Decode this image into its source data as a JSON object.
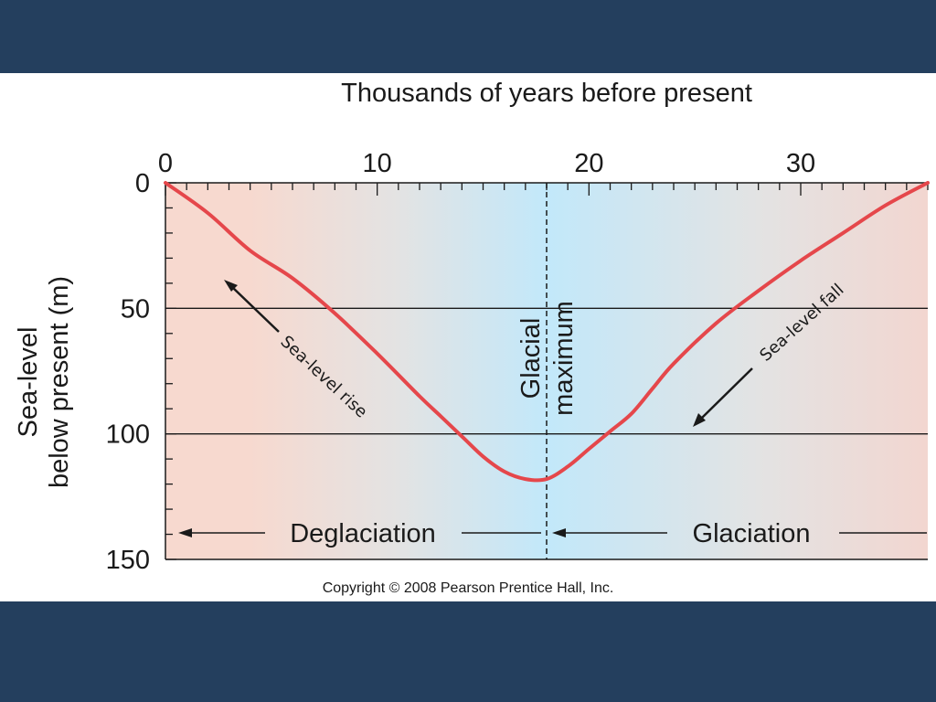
{
  "slide": {
    "background_color": "#243f5e",
    "panel_color": "#ffffff"
  },
  "chart_data": {
    "type": "line",
    "title": "",
    "xlabel": "Thousands of years before present",
    "ylabel_lines": [
      "Sea-level",
      "below present (m)"
    ],
    "xlim": [
      0,
      36
    ],
    "ylim": [
      0,
      150
    ],
    "y_inverted": true,
    "x_axis_position": "top",
    "x_ticks": [
      0,
      10,
      20,
      30
    ],
    "y_ticks": [
      0,
      50,
      100,
      150
    ],
    "gridlines_y": [
      50,
      100
    ],
    "series": [
      {
        "color": "#e5474b",
        "x": [
          0,
          2,
          4,
          6,
          8,
          10,
          12,
          13,
          14,
          15,
          16,
          17,
          18,
          19,
          20,
          21,
          22,
          23,
          24,
          26,
          28,
          30,
          32,
          34,
          36
        ],
        "y": [
          0,
          12,
          27,
          38,
          52,
          68,
          85,
          93,
          101,
          109,
          115,
          118,
          118,
          113,
          106,
          99,
          92,
          82,
          72,
          56,
          43,
          31,
          20,
          9,
          0
        ]
      }
    ],
    "background_bands": [
      {
        "from": 0,
        "to": 8,
        "color": "#f7d9cf"
      },
      {
        "from": 8,
        "to": 14,
        "color": "#e3e3e3"
      },
      {
        "from": 18,
        "to": 18,
        "color": "#c2e8fa"
      },
      {
        "from": 26,
        "to": 30,
        "color": "#e3e3e3"
      },
      {
        "from": 36,
        "to": 36,
        "color": "#f2d6d0"
      }
    ],
    "glacial_maximum_x": 18,
    "annotations": {
      "glacial_maximum_lines": [
        "Glacial",
        "maximum"
      ],
      "deglaciation_label": "Deglaciation",
      "glaciation_label": "Glaciation",
      "sea_level_rise": "Sea-level rise",
      "sea_level_fall": "Sea-level fall"
    },
    "copyright": "Copyright © 2008 Pearson Prentice Hall, Inc."
  }
}
